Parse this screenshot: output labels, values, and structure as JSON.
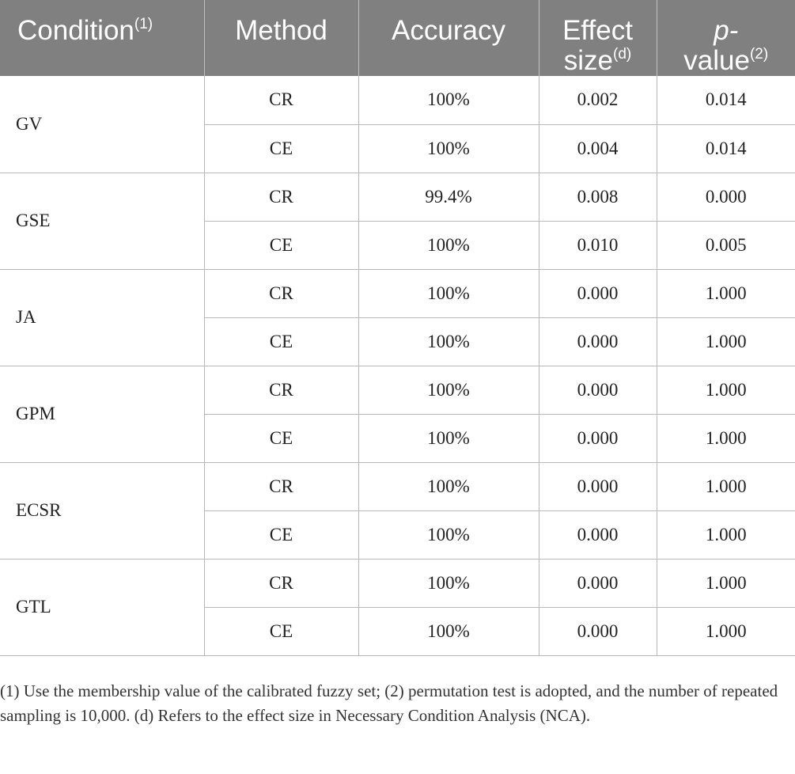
{
  "table": {
    "headers": {
      "condition": "Condition",
      "condition_sup": "(1)",
      "method": "Method",
      "accuracy": "Accuracy",
      "effect_line1": "Effect",
      "effect_line2": "size",
      "effect_sup": "(d)",
      "p_line1": "p-",
      "p_line2": "value",
      "p_sup": "(2)"
    },
    "groups": [
      {
        "condition": "GV",
        "rows": [
          {
            "method": "CR",
            "accuracy": "100%",
            "effect": "0.002",
            "p": "0.014"
          },
          {
            "method": "CE",
            "accuracy": "100%",
            "effect": "0.004",
            "p": "0.014"
          }
        ]
      },
      {
        "condition": "GSE",
        "rows": [
          {
            "method": "CR",
            "accuracy": "99.4%",
            "effect": "0.008",
            "p": "0.000"
          },
          {
            "method": "CE",
            "accuracy": "100%",
            "effect": "0.010",
            "p": "0.005"
          }
        ]
      },
      {
        "condition": "JA",
        "rows": [
          {
            "method": "CR",
            "accuracy": "100%",
            "effect": "0.000",
            "p": "1.000"
          },
          {
            "method": "CE",
            "accuracy": "100%",
            "effect": "0.000",
            "p": "1.000"
          }
        ]
      },
      {
        "condition": "GPM",
        "rows": [
          {
            "method": "CR",
            "accuracy": "100%",
            "effect": "0.000",
            "p": "1.000"
          },
          {
            "method": "CE",
            "accuracy": "100%",
            "effect": "0.000",
            "p": "1.000"
          }
        ]
      },
      {
        "condition": "ECSR",
        "rows": [
          {
            "method": "CR",
            "accuracy": "100%",
            "effect": "0.000",
            "p": "1.000"
          },
          {
            "method": "CE",
            "accuracy": "100%",
            "effect": "0.000",
            "p": "1.000"
          }
        ]
      },
      {
        "condition": "GTL",
        "rows": [
          {
            "method": "CR",
            "accuracy": "100%",
            "effect": "0.000",
            "p": "1.000"
          },
          {
            "method": "CE",
            "accuracy": "100%",
            "effect": "0.000",
            "p": "1.000"
          }
        ]
      }
    ]
  },
  "footnote": "(1) Use the membership value of the calibrated fuzzy set; (2) permutation test is adopted, and the number of repeated sampling is 10,000. (d) Refers to the effect size in Necessary Condition Analysis (NCA).",
  "colors": {
    "header_bg": "#808080",
    "header_text": "#ffffff",
    "border": "#b8b8b8"
  }
}
